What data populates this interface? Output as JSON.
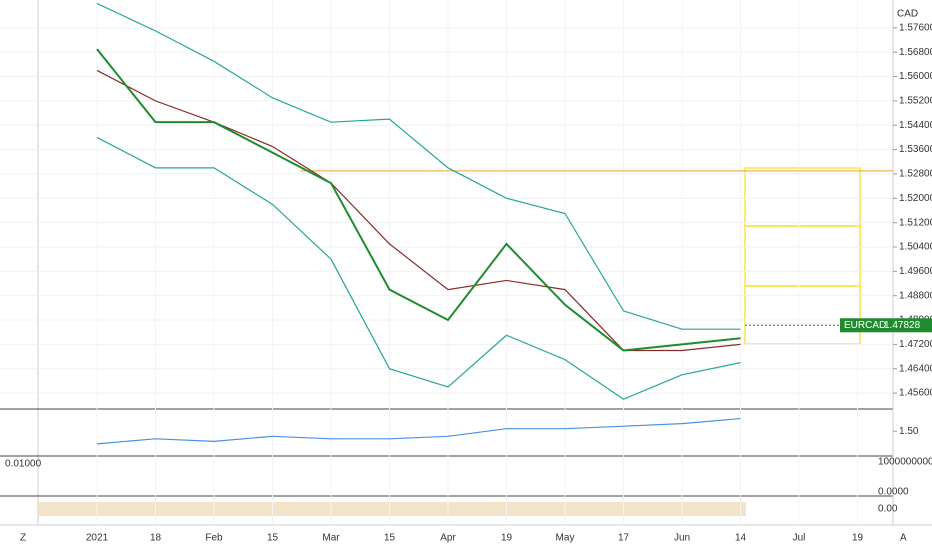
{
  "chart_data": [
    {
      "type": "line",
      "categories": [
        "2021",
        "18",
        "Feb",
        "15",
        "Mar",
        "15",
        "Apr",
        "19",
        "May",
        "17",
        "Jun",
        "14",
        "Jul",
        "19"
      ],
      "series": [
        {
          "color": "#26a69a",
          "values": [
            1.584,
            1.575,
            1.565,
            1.553,
            1.545,
            1.546,
            1.53,
            1.52,
            1.515,
            1.483,
            1.477,
            1.477,
            null,
            null
          ]
        },
        {
          "color": "#26a69a",
          "values": [
            1.54,
            1.53,
            1.53,
            1.518,
            1.5,
            1.464,
            1.458,
            1.475,
            1.467,
            1.454,
            1.462,
            1.466,
            null,
            null
          ]
        },
        {
          "color": "#8b2a2a",
          "values": [
            1.562,
            1.552,
            1.545,
            1.537,
            1.525,
            1.505,
            1.49,
            1.493,
            1.49,
            1.47,
            1.47,
            1.472,
            null,
            null
          ]
        },
        {
          "color": "#1e8c2e",
          "values": [
            1.569,
            1.545,
            1.545,
            1.535,
            1.525,
            1.49,
            1.48,
            1.505,
            1.485,
            1.47,
            1.472,
            1.474,
            null,
            null
          ]
        }
      ],
      "ylim": [
        1.4511,
        1.5835
      ],
      "yticks": [
        {
          "value": 1.456,
          "label": "1.45600"
        },
        {
          "value": 1.464,
          "label": "1.46400"
        },
        {
          "value": 1.472,
          "label": "1.47200"
        },
        {
          "value": 1.48,
          "label": "1.48000"
        },
        {
          "value": 1.488,
          "label": "1.48800"
        },
        {
          "value": 1.496,
          "label": "1.49600"
        },
        {
          "value": 1.504,
          "label": "1.50400"
        },
        {
          "value": 1.512,
          "label": "1.51200"
        },
        {
          "value": 1.52,
          "label": "1.52000"
        },
        {
          "value": 1.528,
          "label": "1.52800"
        },
        {
          "value": 1.536,
          "label": "1.53600"
        },
        {
          "value": 1.544,
          "label": "1.54400"
        },
        {
          "value": 1.552,
          "label": "1.55200"
        },
        {
          "value": 1.56,
          "label": "1.56000"
        },
        {
          "value": 1.568,
          "label": "1.56800"
        },
        {
          "value": 1.576,
          "label": "1.57600"
        }
      ],
      "currency": "CAD",
      "level": 1.529,
      "last": {
        "symbol": "EURCAD",
        "value": 1.47828
      },
      "grid": true
    },
    {
      "type": "line",
      "categories": [
        "2021",
        "18",
        "Feb",
        "15",
        "Mar",
        "15",
        "Apr",
        "19",
        "May",
        "17",
        "Jun",
        "14",
        "Jul",
        "19"
      ],
      "series": [
        {
          "color": "#4a90e2",
          "values": [
            1.45,
            1.47,
            1.46,
            1.48,
            1.47,
            1.47,
            1.48,
            1.51,
            1.51,
            1.52,
            1.53,
            1.55,
            null,
            null
          ]
        }
      ],
      "ylim": [
        1.41,
        1.58
      ],
      "yticks": [
        {
          "value": 1.5,
          "label": "1.50"
        }
      ]
    }
  ],
  "indicator_labels": {
    "volume_left": "0.01000",
    "volume_top": "1000000000.0000",
    "volume_bottom": "0.0000",
    "oscillator": "0.00"
  },
  "toolbar": {
    "left": "Z",
    "right": "A"
  }
}
